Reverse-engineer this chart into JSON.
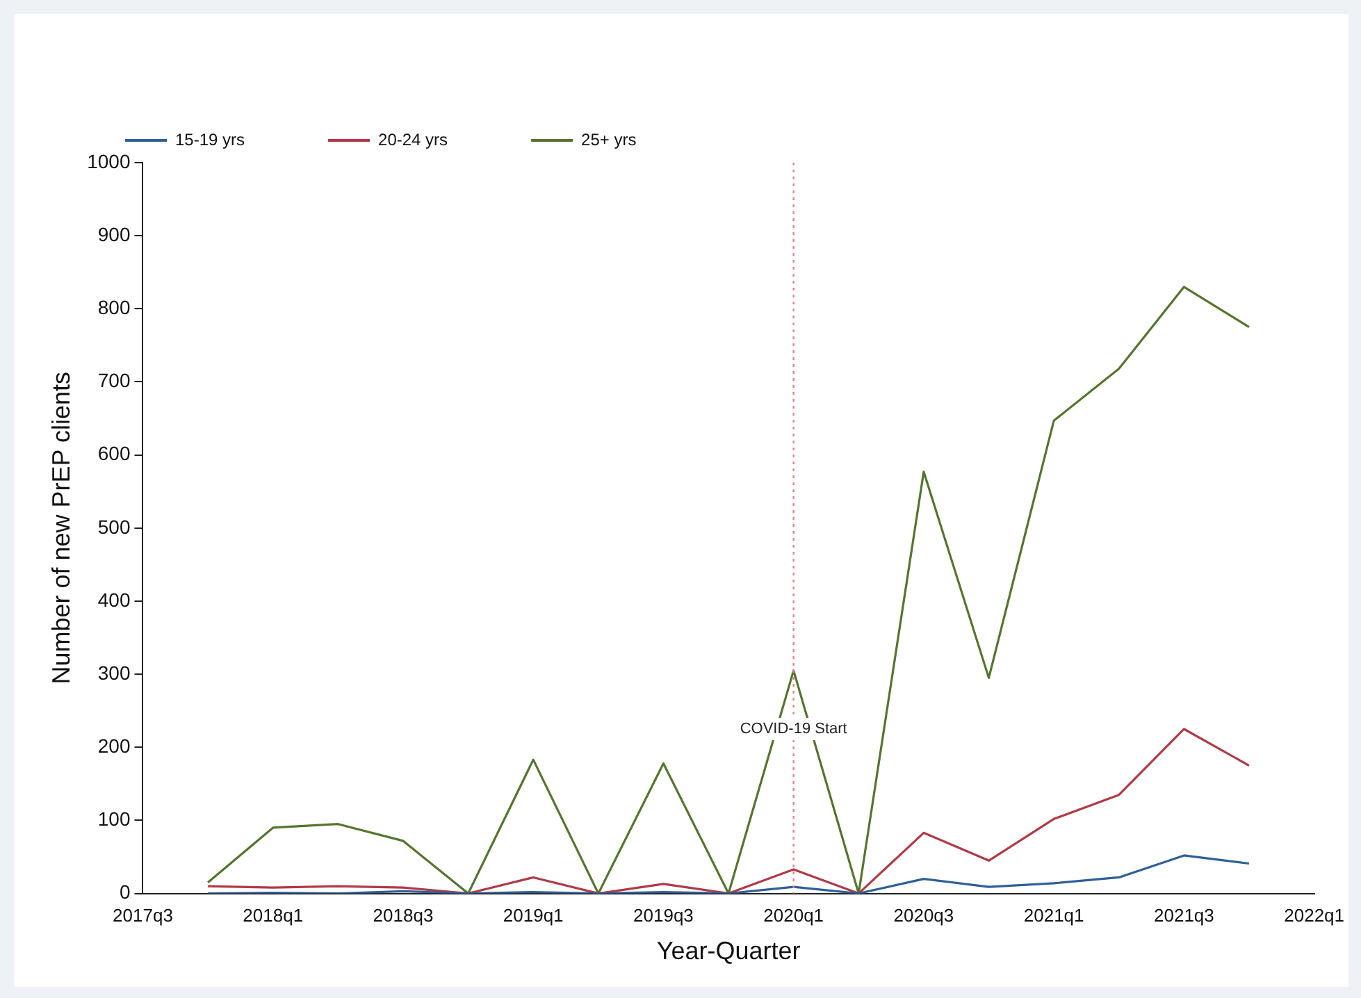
{
  "chart_data": {
    "type": "line",
    "xlabel": "Year-Quarter",
    "ylabel": "Number of new PrEP clients",
    "categories": [
      "2017q3",
      null,
      "2018q1",
      null,
      "2018q3",
      null,
      "2019q1",
      null,
      "2019q3",
      null,
      "2020q1",
      null,
      "2020q3",
      null,
      "2021q1",
      null,
      "2021q3",
      null,
      "2022q1"
    ],
    "series": [
      {
        "name": "15-19 yrs",
        "color": "#2f5f98",
        "values": [
          null,
          0,
          1,
          0,
          3,
          0,
          2,
          0,
          2,
          0,
          9,
          0,
          20,
          9,
          14,
          22,
          52,
          41,
          null
        ]
      },
      {
        "name": "20-24 yrs",
        "color": "#b03a48",
        "values": [
          null,
          10,
          8,
          10,
          8,
          0,
          22,
          0,
          13,
          0,
          33,
          0,
          83,
          45,
          102,
          135,
          225,
          175,
          null
        ]
      },
      {
        "name": "25+ yrs",
        "color": "#55752f",
        "values": [
          null,
          15,
          90,
          95,
          72,
          0,
          183,
          0,
          178,
          0,
          305,
          0,
          577,
          295,
          647,
          718,
          830,
          775,
          null
        ]
      }
    ],
    "ylim": [
      0,
      1000
    ],
    "yticks": [
      0,
      100,
      200,
      300,
      400,
      500,
      600,
      700,
      800,
      900,
      1000
    ],
    "ref_lines": [
      {
        "axis": "x",
        "value": "2020q1",
        "label": "COVID-19 Start",
        "color": "#f08080",
        "line_style": "dotted"
      }
    ],
    "grid": false,
    "legend": "top left",
    "marker": "none",
    "line_style": "solid"
  }
}
